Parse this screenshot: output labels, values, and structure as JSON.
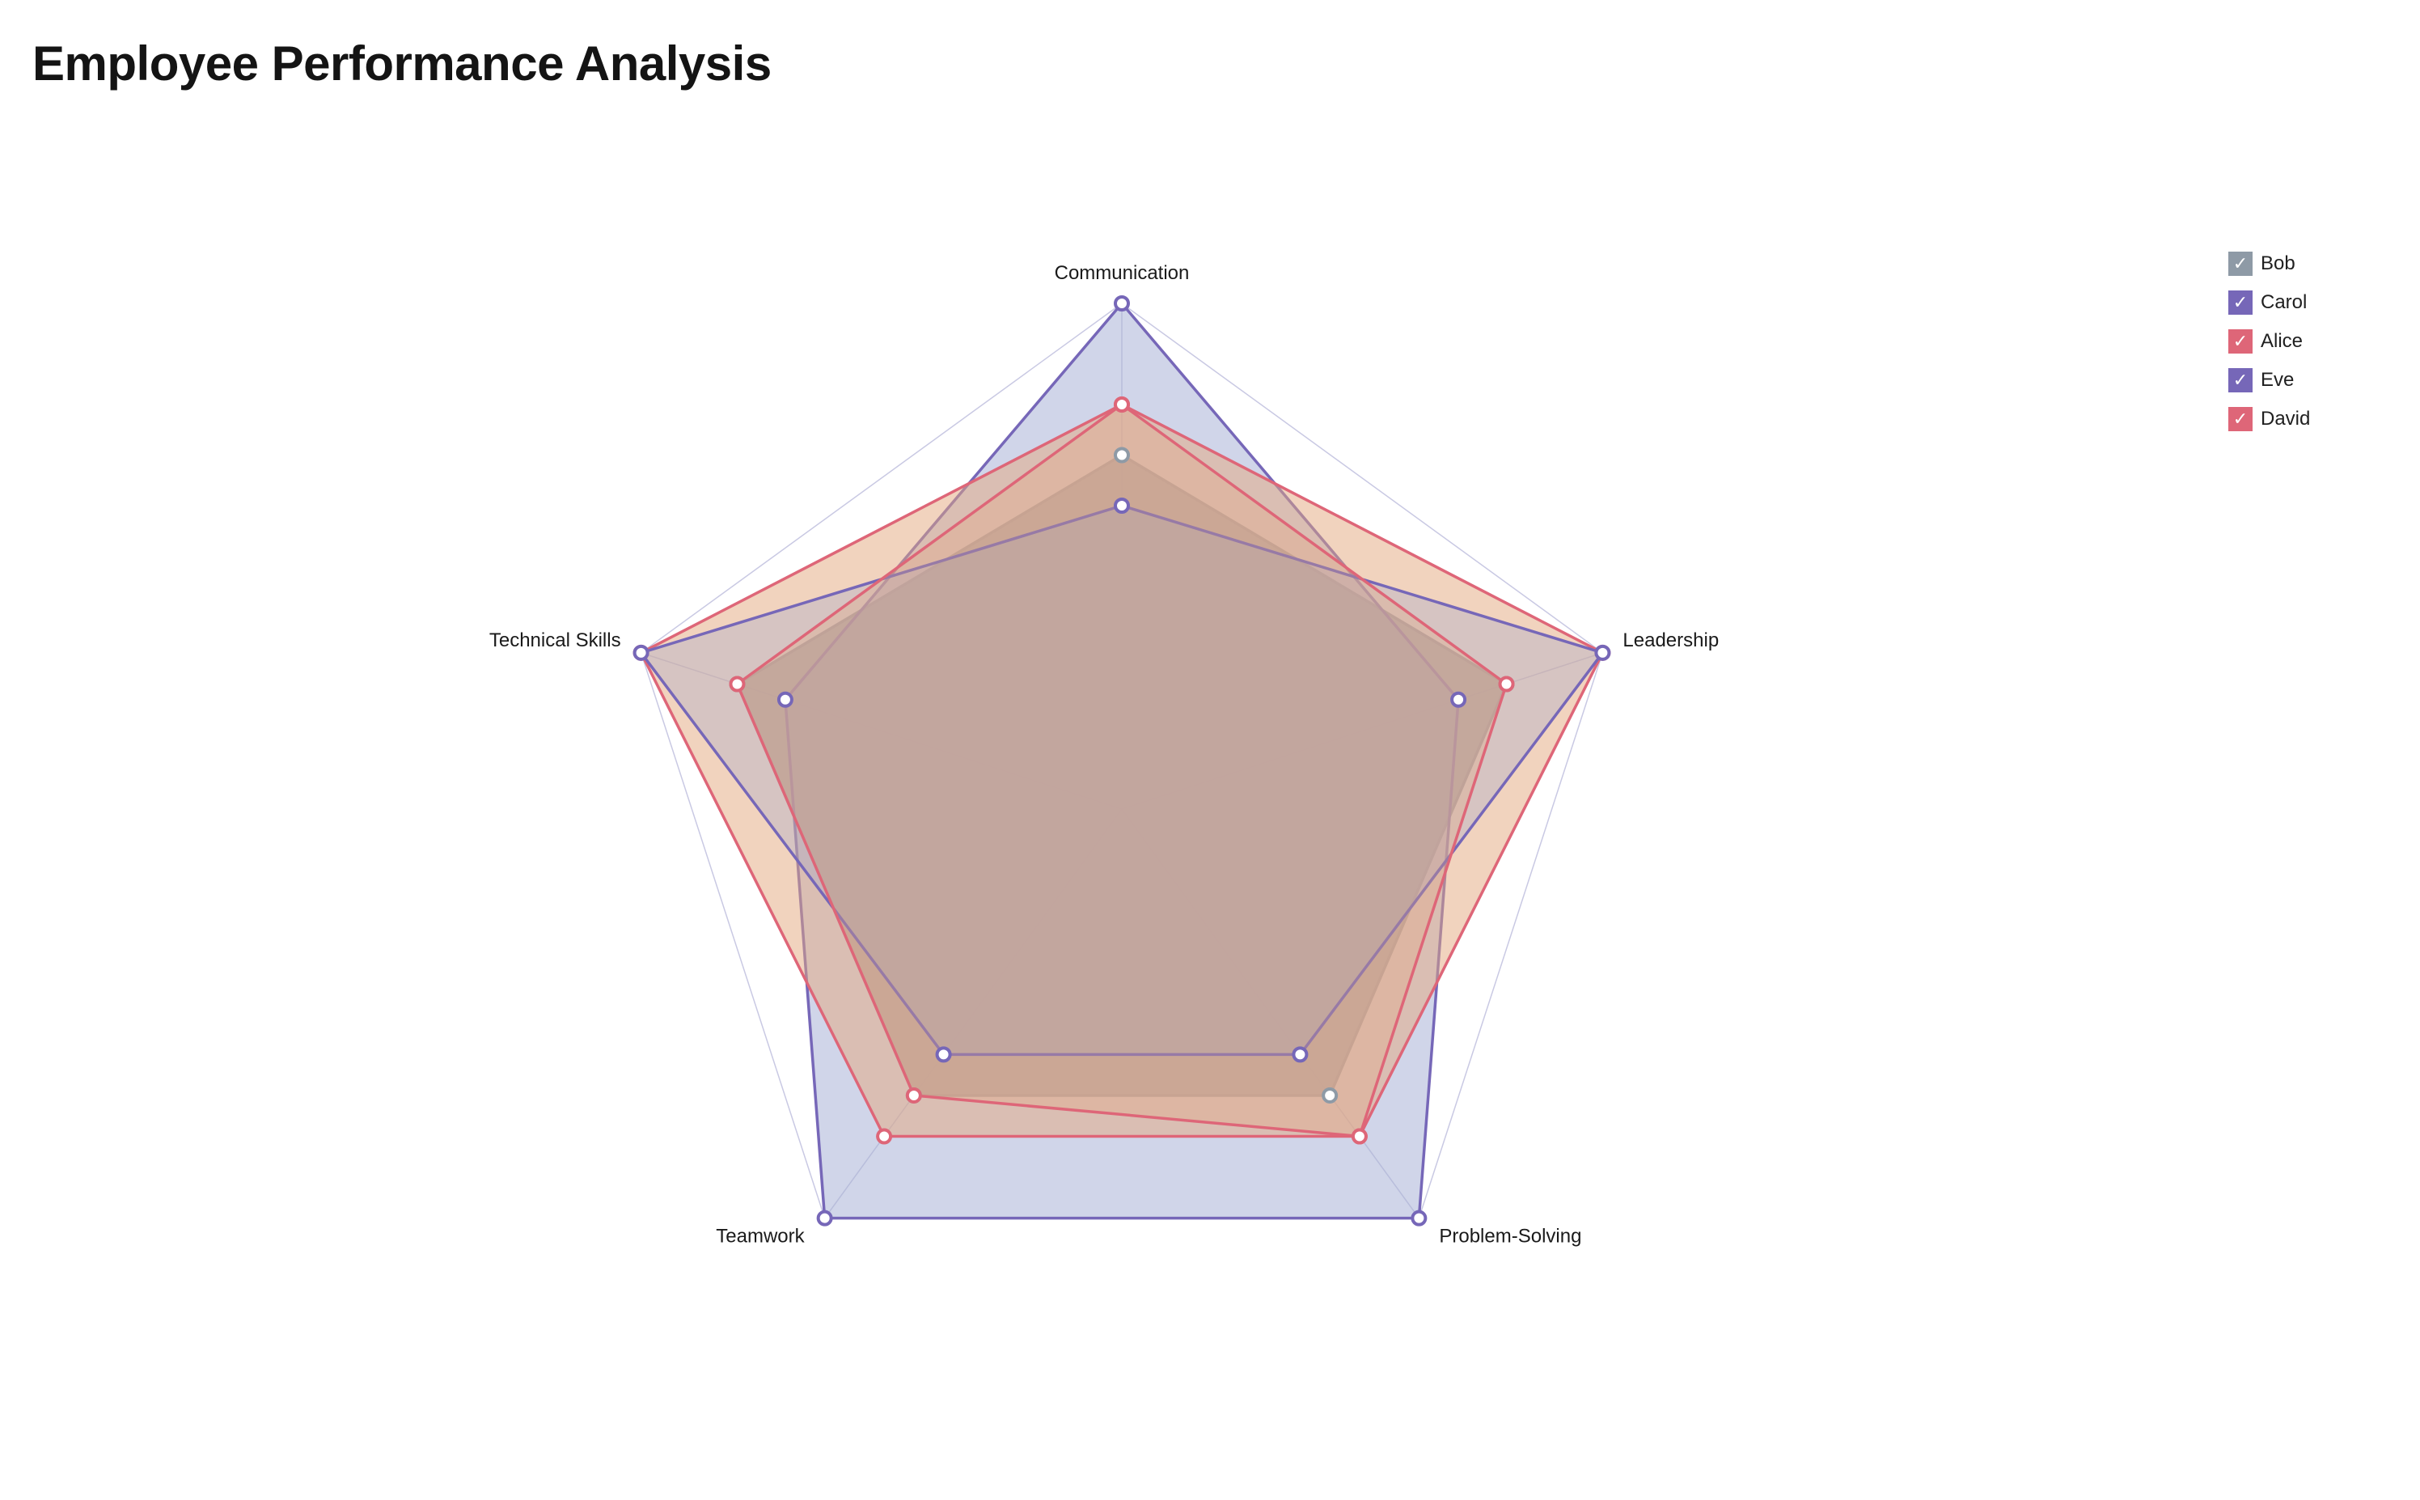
{
  "title": "Employee Performance Analysis",
  "check_glyph": "✓",
  "chart_data": {
    "type": "radar",
    "axes": [
      "Communication",
      "Leadership",
      "Problem-Solving",
      "Teamwork",
      "Technical Skills"
    ],
    "range": [
      0,
      10
    ],
    "grid": true,
    "legend_position": "top-right",
    "series": [
      {
        "name": "Bob",
        "values": [
          7,
          8,
          7,
          7,
          8
        ],
        "color": "#8e9aa6",
        "fill": "#95a2ad",
        "fill_opacity": 0.85
      },
      {
        "name": "Carol",
        "values": [
          10,
          7,
          10,
          10,
          7
        ],
        "color": "#7667b8",
        "fill": "#97a1ce",
        "fill_opacity": 0.45
      },
      {
        "name": "Alice",
        "values": [
          8,
          10,
          8,
          8,
          10
        ],
        "color": "#de6678",
        "fill": "#e3a77e",
        "fill_opacity": 0.5
      },
      {
        "name": "Eve",
        "values": [
          6,
          10,
          6,
          6,
          10
        ],
        "color": "#7667b8",
        "fill": "#97a1ce",
        "fill_opacity": 0.3
      },
      {
        "name": "David",
        "values": [
          8,
          8,
          8,
          7,
          8
        ],
        "color": "#de6678",
        "fill": "#e3a77e",
        "fill_opacity": 0.3
      }
    ],
    "legend_order": [
      "Bob",
      "Carol",
      "Alice",
      "Eve",
      "David"
    ]
  }
}
